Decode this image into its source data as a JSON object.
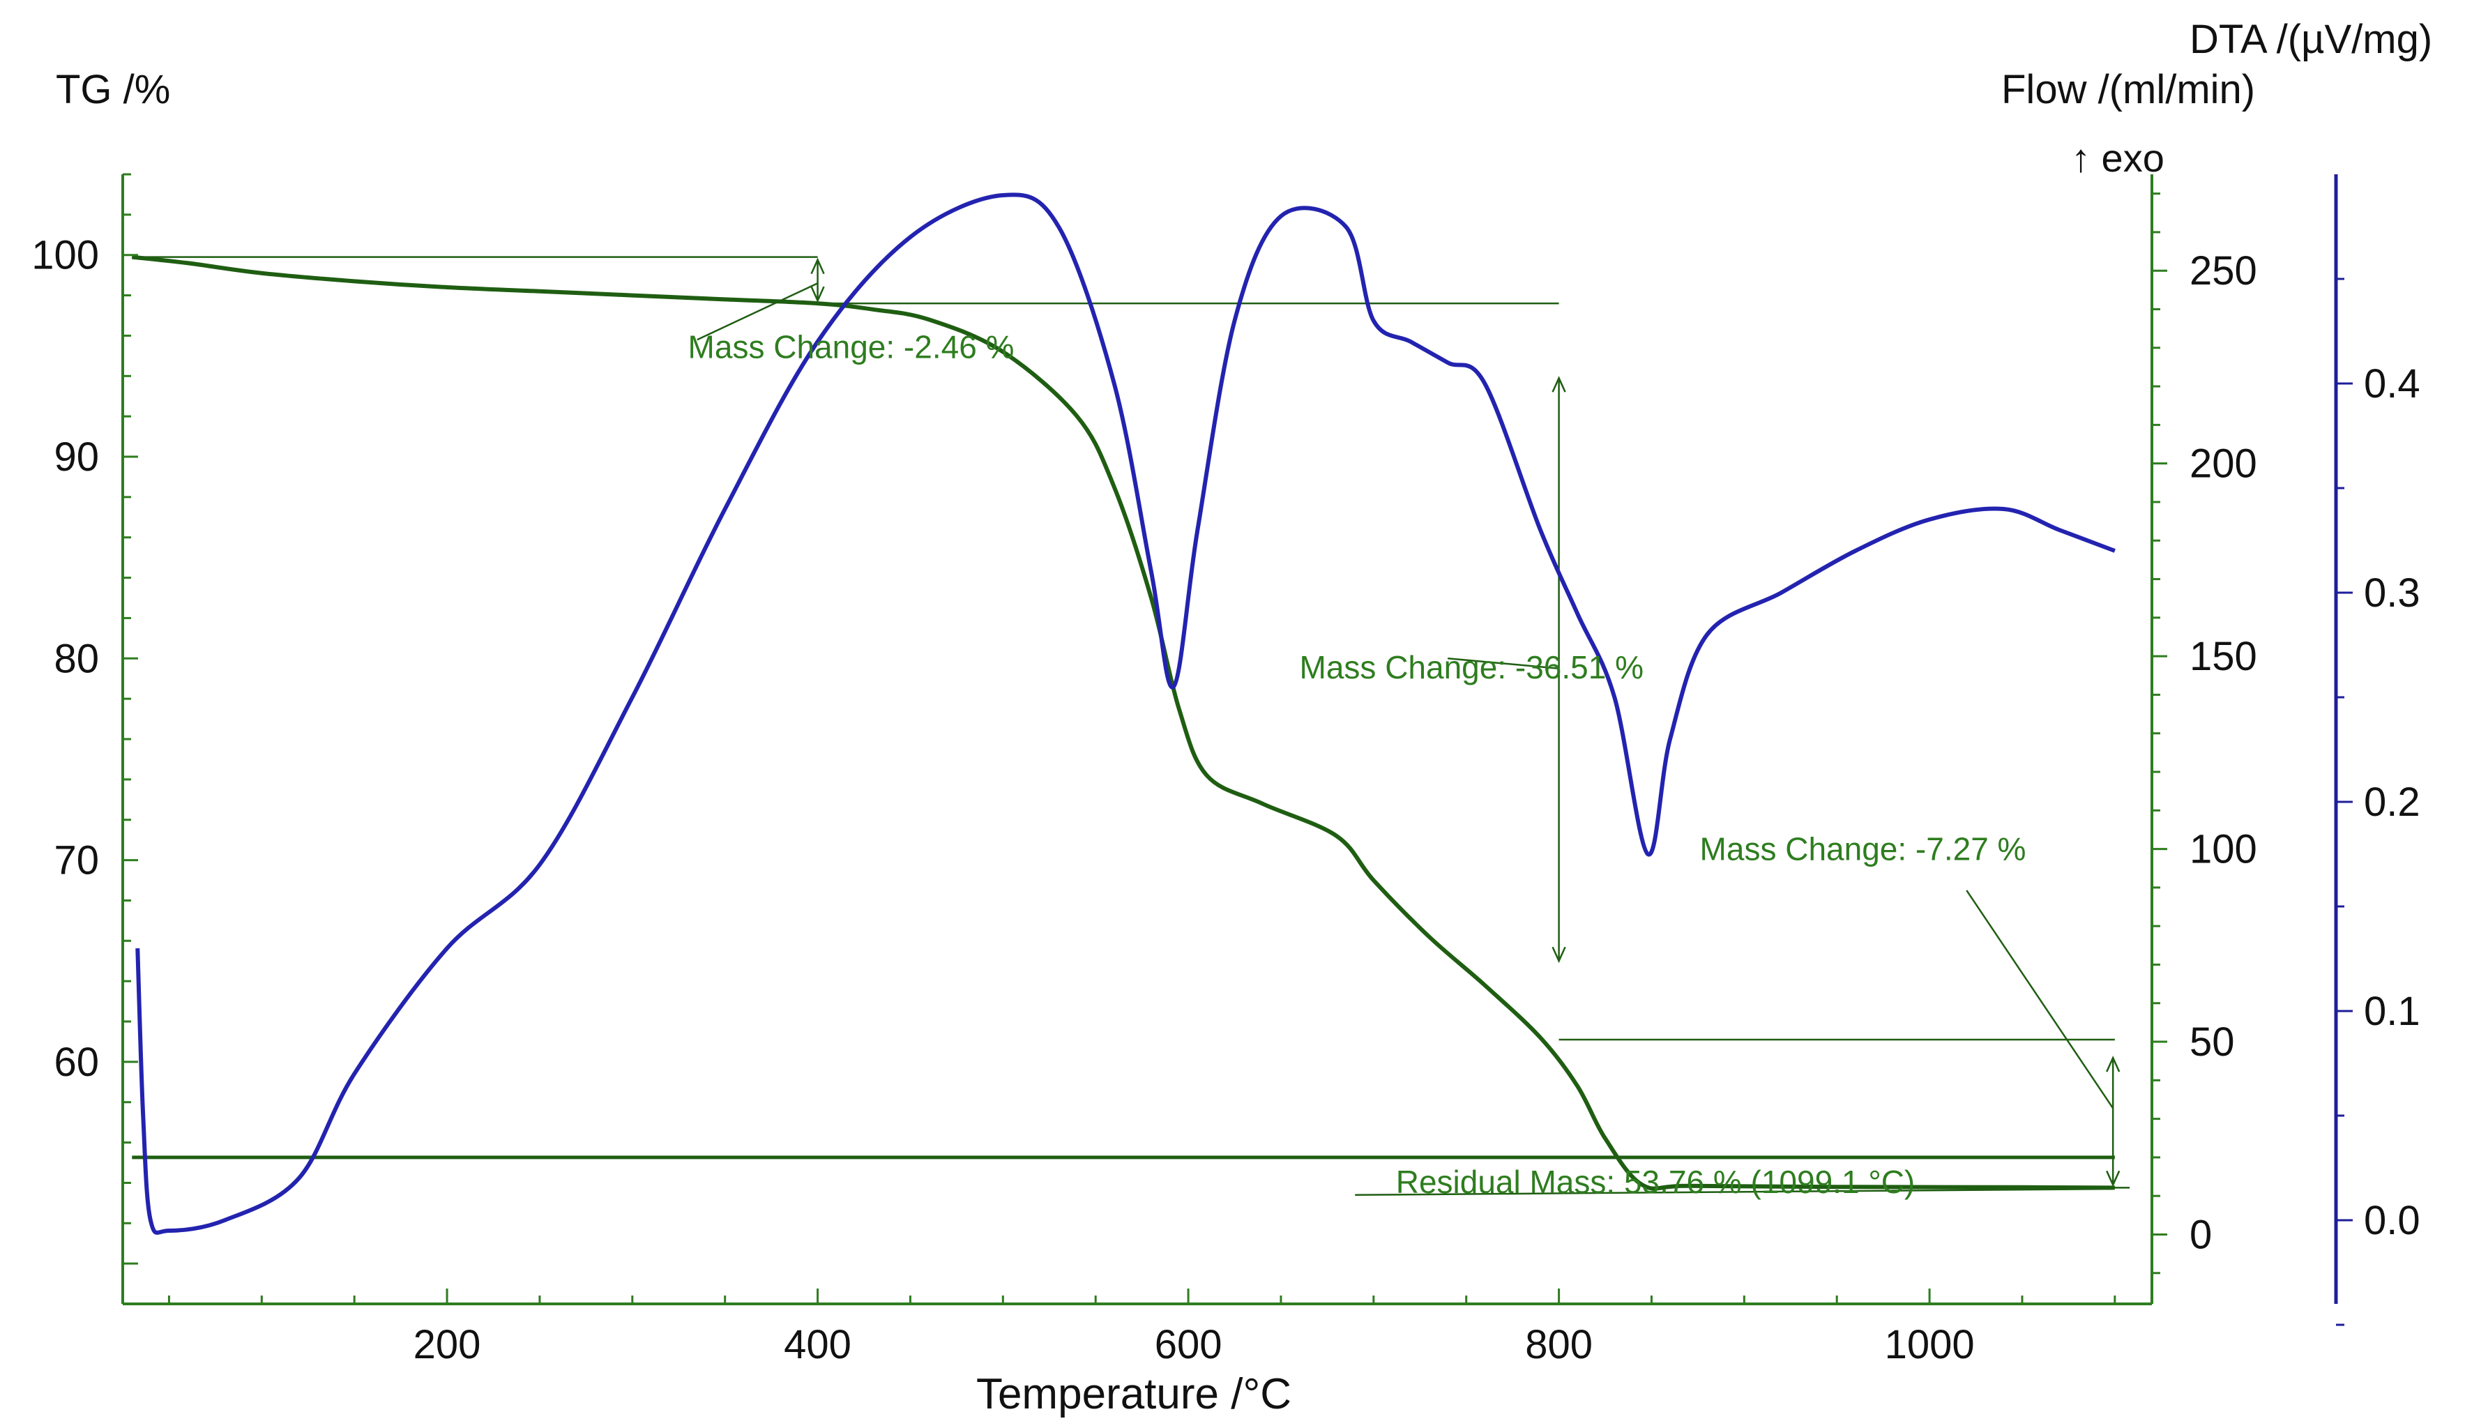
{
  "chart_data": {
    "type": "line",
    "xlabel": "Temperature /°C",
    "x_ticks": [
      200,
      400,
      600,
      800,
      1000
    ],
    "xlim": [
      25,
      1120
    ],
    "axes": {
      "tg": {
        "label": "TG /%",
        "ticks": [
          60,
          70,
          80,
          90,
          100
        ],
        "range": [
          48,
          104
        ]
      },
      "flow": {
        "label": "Flow /(ml/min)",
        "ticks": [
          0,
          50,
          100,
          150,
          200,
          250
        ],
        "range": [
          -18,
          275
        ]
      },
      "dta": {
        "label": "DTA /(µV/mg)",
        "exo_label": "↑ exo",
        "ticks": [
          0.0,
          0.1,
          0.2,
          0.3,
          0.4
        ],
        "tick_labels": [
          "0.0",
          "0.1",
          "0.2",
          "0.3",
          "0.4"
        ],
        "range": [
          -0.04,
          0.5
        ]
      }
    },
    "colors": {
      "tg": "#1f5e12",
      "dta": "#2323b0",
      "axis_green": "#2e7d1f",
      "axis_blue": "#1e1e9a"
    },
    "series": [
      {
        "name": "TG",
        "axis": "tg",
        "x": [
          30,
          60,
          100,
          150,
          200,
          250,
          300,
          350,
          400,
          430,
          460,
          500,
          540,
          560,
          580,
          595,
          610,
          640,
          680,
          700,
          730,
          760,
          790,
          810,
          825,
          845,
          870,
          950,
          1050,
          1100
        ],
        "y": [
          99.9,
          99.6,
          99.1,
          98.7,
          98.4,
          98.2,
          98.0,
          97.8,
          97.6,
          97.3,
          96.8,
          95.2,
          92.0,
          88.5,
          83.0,
          77.5,
          74.2,
          72.8,
          71.2,
          69.0,
          66.2,
          63.8,
          61.2,
          58.8,
          56.2,
          53.9,
          53.85,
          53.8,
          53.78,
          53.76
        ]
      },
      {
        "name": "Flow",
        "axis": "flow",
        "x": [
          30,
          1100
        ],
        "y": [
          20,
          20
        ]
      },
      {
        "name": "DTA",
        "axis": "dta",
        "x": [
          33,
          36,
          40,
          50,
          80,
          120,
          150,
          200,
          250,
          300,
          350,
          400,
          450,
          500,
          530,
          560,
          580,
          592,
          605,
          625,
          650,
          685,
          700,
          720,
          740,
          760,
          790,
          810,
          830,
          848,
          860,
          880,
          920,
          960,
          1000,
          1040,
          1070,
          1100
        ],
        "y": [
          0.13,
          0.05,
          0.0,
          -0.005,
          0.0,
          0.02,
          0.07,
          0.13,
          0.17,
          0.25,
          0.34,
          0.42,
          0.47,
          0.49,
          0.475,
          0.4,
          0.31,
          0.255,
          0.33,
          0.43,
          0.48,
          0.475,
          0.43,
          0.42,
          0.41,
          0.4,
          0.33,
          0.29,
          0.25,
          0.175,
          0.23,
          0.28,
          0.3,
          0.32,
          0.335,
          0.34,
          0.33,
          0.32
        ]
      }
    ],
    "annotations": [
      {
        "text": "Mass Change: -2.46 %",
        "x": 330,
        "y": 94.9
      },
      {
        "text": "Mass Change: -36.51 %",
        "x": 660,
        "y": 79.0
      },
      {
        "text": "Mass Change: -7.27 %",
        "x": 876,
        "y": 70.0
      },
      {
        "text": "Residual Mass: 53.76 % (1099.1 °C)",
        "x": 712,
        "y": 53.5
      }
    ]
  }
}
